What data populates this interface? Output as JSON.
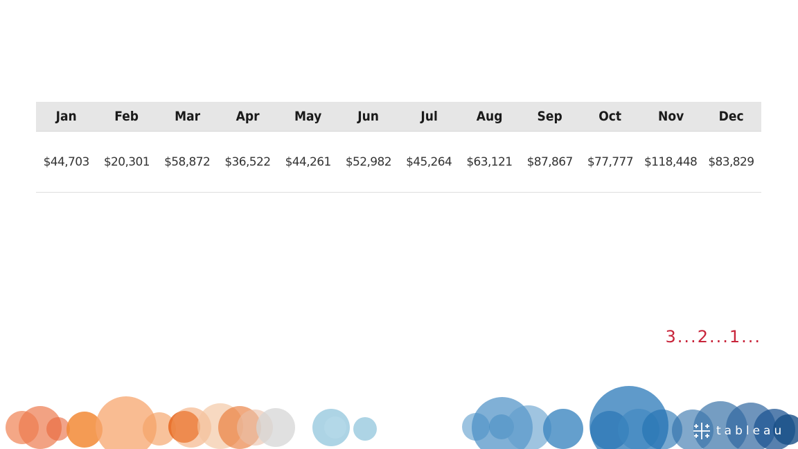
{
  "chart_data": {
    "type": "table",
    "categories": [
      "Jan",
      "Feb",
      "Mar",
      "Apr",
      "May",
      "Jun",
      "Jul",
      "Aug",
      "Sep",
      "Oct",
      "Nov",
      "Dec"
    ],
    "values": [
      44703,
      20301,
      58872,
      36522,
      44261,
      52982,
      45264,
      63121,
      87867,
      77777,
      118448,
      83829
    ],
    "value_labels": [
      "$44,703",
      "$20,301",
      "$58,872",
      "$36,522",
      "$44,261",
      "$52,982",
      "$45,264",
      "$63,121",
      "$87,867",
      "$77,777",
      "$118,448",
      "$83,829"
    ]
  },
  "countdown": "3...2...1...",
  "logo": {
    "wordmark": "tableau",
    "icon": "tableau-cross-logo-icon"
  },
  "colors": {
    "header_bg": "#e6e6e6",
    "countdown": "#c8243a",
    "orange_palette": [
      "#f08a5d",
      "#f5a56f",
      "#e8722c",
      "#f2c4a0"
    ],
    "gray": "#cfcfcf",
    "light_blue": "#9fcde0",
    "blue_palette": [
      "#5a9bcb",
      "#3d87c0",
      "#1f6fb0",
      "#174e86"
    ]
  }
}
